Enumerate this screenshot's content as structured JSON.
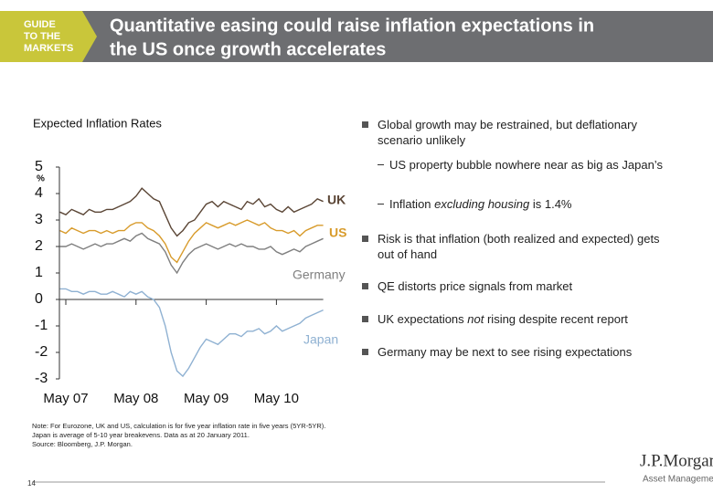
{
  "header": {
    "badge": [
      "GUIDE",
      "TO THE",
      "MARKETS"
    ],
    "title": [
      "Quantitative easing could raise inflation expectations in",
      "the US once growth accelerates"
    ]
  },
  "chart_data": {
    "type": "line",
    "title": "Expected Inflation Rates",
    "y_label": "%",
    "categories": [
      null,
      "May 07",
      null,
      null,
      null,
      null,
      null,
      null,
      null,
      null,
      null,
      null,
      null,
      "May 08",
      null,
      null,
      null,
      null,
      null,
      null,
      null,
      null,
      null,
      null,
      null,
      "May 09",
      null,
      null,
      null,
      null,
      null,
      null,
      null,
      null,
      null,
      null,
      null,
      "May 10",
      null,
      null,
      null,
      null,
      null,
      null,
      null,
      null
    ],
    "series": [
      {
        "name": "UK",
        "color": "#5b4636",
        "values": [
          3.3,
          3.2,
          3.4,
          3.3,
          3.2,
          3.4,
          3.3,
          3.3,
          3.4,
          3.4,
          3.5,
          3.6,
          3.7,
          3.9,
          4.2,
          4.0,
          3.8,
          3.7,
          3.2,
          2.7,
          2.4,
          2.6,
          2.9,
          3.0,
          3.3,
          3.6,
          3.7,
          3.5,
          3.7,
          3.6,
          3.5,
          3.4,
          3.7,
          3.6,
          3.8,
          3.5,
          3.6,
          3.4,
          3.3,
          3.5,
          3.3,
          3.4,
          3.5,
          3.6,
          3.8,
          3.7
        ]
      },
      {
        "name": "US",
        "color": "#d89b2b",
        "values": [
          2.6,
          2.5,
          2.7,
          2.6,
          2.5,
          2.6,
          2.6,
          2.5,
          2.6,
          2.5,
          2.6,
          2.6,
          2.8,
          2.9,
          2.9,
          2.7,
          2.6,
          2.4,
          2.1,
          1.6,
          1.4,
          1.8,
          2.2,
          2.5,
          2.7,
          2.9,
          2.8,
          2.7,
          2.8,
          2.9,
          2.8,
          2.9,
          3.0,
          2.9,
          2.8,
          2.9,
          2.7,
          2.6,
          2.6,
          2.5,
          2.6,
          2.4,
          2.6,
          2.7,
          2.8,
          2.8
        ]
      },
      {
        "name": "Germany",
        "color": "#7f7f7f",
        "values": [
          2.0,
          2.0,
          2.1,
          2.0,
          1.9,
          2.0,
          2.1,
          2.0,
          2.1,
          2.1,
          2.2,
          2.3,
          2.2,
          2.4,
          2.5,
          2.3,
          2.2,
          2.1,
          1.8,
          1.3,
          1.0,
          1.4,
          1.7,
          1.9,
          2.0,
          2.1,
          2.0,
          1.9,
          2.0,
          2.1,
          2.0,
          2.1,
          2.0,
          2.0,
          1.9,
          1.9,
          2.0,
          1.8,
          1.7,
          1.8,
          1.9,
          1.8,
          2.0,
          2.1,
          2.2,
          2.3
        ]
      },
      {
        "name": "Japan",
        "color": "#8fb1d2",
        "values": [
          0.4,
          0.4,
          0.3,
          0.3,
          0.2,
          0.3,
          0.3,
          0.2,
          0.2,
          0.3,
          0.2,
          0.1,
          0.3,
          0.2,
          0.3,
          0.1,
          0.0,
          -0.3,
          -1.0,
          -2.0,
          -2.7,
          -2.9,
          -2.6,
          -2.2,
          -1.8,
          -1.5,
          -1.6,
          -1.7,
          -1.5,
          -1.3,
          -1.3,
          -1.4,
          -1.2,
          -1.2,
          -1.1,
          -1.3,
          -1.2,
          -1.0,
          -1.2,
          -1.1,
          -1.0,
          -0.9,
          -0.7,
          -0.6,
          -0.5,
          -0.4
        ]
      }
    ],
    "ylim": [
      -3,
      5
    ],
    "yticks": [
      -3,
      -2,
      -1,
      0,
      1,
      2,
      3,
      4,
      5
    ],
    "grid": false
  },
  "bullets": [
    {
      "level": 1,
      "runs": [
        {
          "text": "Global growth may be restrained, but deflationary scenario unlikely",
          "italic": false
        }
      ]
    },
    {
      "level": 2,
      "runs": [
        {
          "text": "US property bubble nowhere near as big as Japan’s",
          "italic": false
        }
      ]
    },
    {
      "level": 2,
      "runs": [
        {
          "text": "Inflation ",
          "italic": false
        },
        {
          "text": "excluding housing",
          "italic": true
        },
        {
          "text": " is 1.4%",
          "italic": false
        }
      ]
    },
    {
      "level": 1,
      "runs": [
        {
          "text": "Risk is that inflation (both realized and expected) gets out of hand",
          "italic": false
        }
      ]
    },
    {
      "level": 1,
      "runs": [
        {
          "text": "QE distorts price signals from market",
          "italic": false
        }
      ]
    },
    {
      "level": 1,
      "runs": [
        {
          "text": "UK expectations ",
          "italic": false
        },
        {
          "text": "not",
          "italic": true
        },
        {
          "text": " rising despite recent report",
          "italic": false
        }
      ]
    },
    {
      "level": 1,
      "runs": [
        {
          "text": "Germany may be next to see rising expectations",
          "italic": false
        }
      ]
    }
  ],
  "note": [
    "Note: For Eurozone, UK and US, calculation is for five year inflation rate in five years (5YR-5YR).",
    "Japan is average of 5-10 year breakevens. Data as at 20 January 2011.",
    "Source: Bloomberg, J.P. Morgan."
  ],
  "footer": {
    "page": "14",
    "logo": "J.P.Morgan",
    "logo_sub": "Asset Management"
  }
}
